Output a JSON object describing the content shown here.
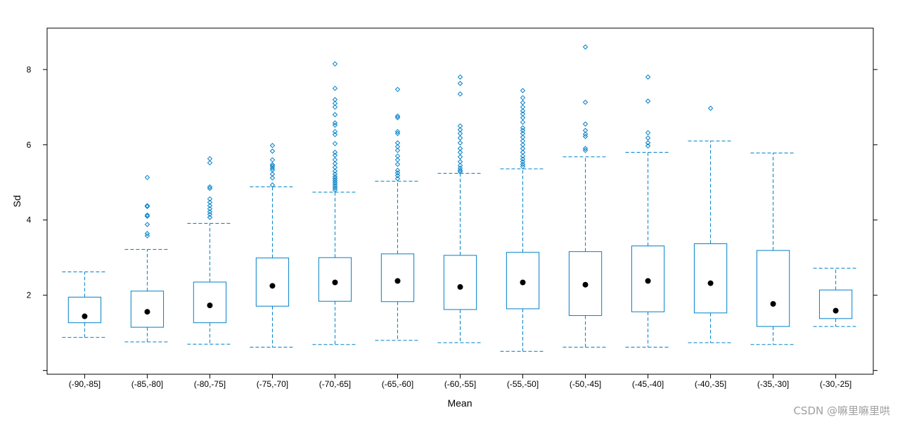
{
  "watermark": "CSDN @嘛里嘛里哄",
  "colors": {
    "box": "#0080C8",
    "median_dot": "#000000",
    "frame": "#000000"
  },
  "chart_data": {
    "type": "boxplot",
    "title": "",
    "xlabel": "Mean",
    "ylabel": "Sd",
    "ylim": [
      -0.1,
      9.1
    ],
    "yticks": [
      2,
      4,
      6,
      8
    ],
    "grid": false,
    "categories": [
      "(-90,-85]",
      "(-85,-80]",
      "(-80,-75]",
      "(-75,-70]",
      "(-70,-65]",
      "(-65,-60]",
      "(-60,-55]",
      "(-55,-50]",
      "(-50,-45]",
      "(-45,-40]",
      "(-40,-35]",
      "(-35,-30]",
      "(-30,-25]"
    ],
    "boxes": [
      {
        "whisker_low": 0.88,
        "q1": 1.27,
        "median": 1.44,
        "q3": 1.95,
        "whisker_high": 2.62,
        "outliers": []
      },
      {
        "whisker_low": 0.76,
        "q1": 1.15,
        "median": 1.56,
        "q3": 2.11,
        "whisker_high": 3.22,
        "outliers": [
          3.58,
          3.64,
          3.88,
          4.1,
          4.13,
          4.36,
          4.38,
          5.13
        ]
      },
      {
        "whisker_low": 0.7,
        "q1": 1.27,
        "median": 1.73,
        "q3": 2.35,
        "whisker_high": 3.91,
        "outliers": [
          4.07,
          4.15,
          4.22,
          4.3,
          4.38,
          4.47,
          4.56,
          4.84,
          4.88,
          5.52,
          5.63
        ]
      },
      {
        "whisker_low": 0.62,
        "q1": 1.71,
        "median": 2.25,
        "q3": 2.99,
        "whisker_high": 4.88,
        "outliers": [
          4.93,
          5.12,
          5.22,
          5.33,
          5.38,
          5.43,
          5.47,
          5.6,
          5.83,
          5.98
        ]
      },
      {
        "whisker_low": 0.69,
        "q1": 1.84,
        "median": 2.34,
        "q3": 3.0,
        "whisker_high": 4.74,
        "outliers": [
          4.8,
          4.85,
          4.9,
          4.95,
          5.0,
          5.05,
          5.1,
          5.15,
          5.22,
          5.3,
          5.4,
          5.5,
          5.6,
          5.72,
          5.8,
          6.03,
          6.27,
          6.35,
          6.52,
          6.58,
          6.8,
          7.0,
          7.1,
          7.2,
          7.5,
          8.15
        ]
      },
      {
        "whisker_low": 0.8,
        "q1": 1.83,
        "median": 2.38,
        "q3": 3.1,
        "whisker_high": 5.03,
        "outliers": [
          5.1,
          5.18,
          5.25,
          5.32,
          5.48,
          5.6,
          5.7,
          5.85,
          5.95,
          6.05,
          6.3,
          6.35,
          6.72,
          6.76,
          7.47
        ]
      },
      {
        "whisker_low": 0.74,
        "q1": 1.62,
        "median": 2.22,
        "q3": 3.06,
        "whisker_high": 5.24,
        "outliers": [
          5.28,
          5.32,
          5.38,
          5.45,
          5.55,
          5.68,
          5.8,
          5.9,
          6.05,
          6.18,
          6.3,
          6.4,
          6.5,
          7.35,
          7.63,
          7.8
        ]
      },
      {
        "whisker_low": 0.51,
        "q1": 1.64,
        "median": 2.34,
        "q3": 3.14,
        "whisker_high": 5.36,
        "outliers": [
          5.42,
          5.48,
          5.55,
          5.62,
          5.7,
          5.8,
          5.9,
          6.0,
          6.1,
          6.2,
          6.3,
          6.38,
          6.45,
          6.6,
          6.72,
          6.82,
          6.9,
          7.0,
          7.12,
          7.25,
          7.44
        ]
      },
      {
        "whisker_low": 0.62,
        "q1": 1.46,
        "median": 2.28,
        "q3": 3.16,
        "whisker_high": 5.68,
        "outliers": [
          5.85,
          5.9,
          6.22,
          6.28,
          6.38,
          6.55,
          7.13,
          8.6
        ]
      },
      {
        "whisker_low": 0.62,
        "q1": 1.56,
        "median": 2.38,
        "q3": 3.31,
        "whisker_high": 5.8,
        "outliers": [
          5.97,
          6.05,
          6.18,
          6.32,
          7.16,
          7.8
        ]
      },
      {
        "whisker_low": 0.74,
        "q1": 1.53,
        "median": 2.32,
        "q3": 3.37,
        "whisker_high": 6.1,
        "outliers": [
          6.97
        ]
      },
      {
        "whisker_low": 0.69,
        "q1": 1.17,
        "median": 1.77,
        "q3": 3.19,
        "whisker_high": 5.78,
        "outliers": []
      },
      {
        "whisker_low": 1.17,
        "q1": 1.38,
        "median": 1.59,
        "q3": 2.14,
        "whisker_high": 2.72,
        "outliers": []
      }
    ]
  }
}
